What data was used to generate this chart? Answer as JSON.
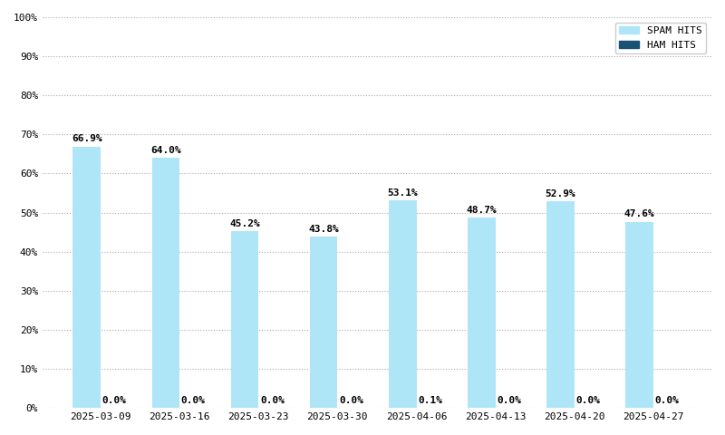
{
  "categories": [
    "2025-03-09",
    "2025-03-16",
    "2025-03-23",
    "2025-03-30",
    "2025-04-06",
    "2025-04-13",
    "2025-04-20",
    "2025-04-27"
  ],
  "spam_hits": [
    66.9,
    64.0,
    45.2,
    43.8,
    53.1,
    48.7,
    52.9,
    47.6
  ],
  "ham_hits": [
    0.0,
    0.0,
    0.0,
    0.0,
    0.1,
    0.0,
    0.0,
    0.0
  ],
  "spam_color": "#aee6f8",
  "ham_color": "#1a5276",
  "bar_width": 0.35,
  "ylim": [
    0,
    100
  ],
  "yticks": [
    0,
    10,
    20,
    30,
    40,
    50,
    60,
    70,
    80,
    90,
    100
  ],
  "ytick_labels": [
    "0%",
    "10%",
    "20%",
    "30%",
    "40%",
    "50%",
    "60%",
    "70%",
    "80%",
    "90%",
    "100%"
  ],
  "legend_spam": "SPAM HITS",
  "legend_ham": "HAM HITS",
  "bg_color": "#ffffff",
  "grid_color": "#aaaaaa",
  "font_color": "#000000",
  "label_fontsize": 8,
  "tick_fontsize": 8,
  "legend_fontsize": 8
}
